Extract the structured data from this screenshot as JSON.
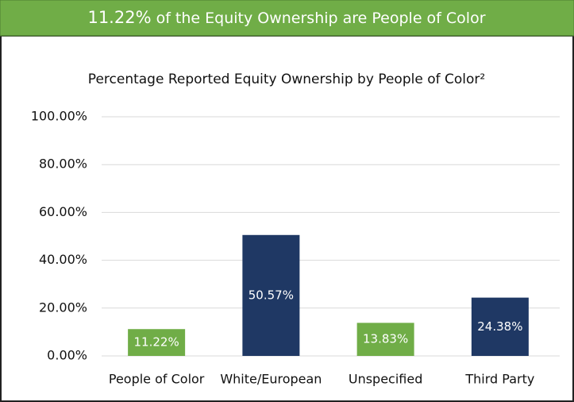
{
  "header": {
    "highlight": "11.22%",
    "text": "of the Equity Ownership are People of Color"
  },
  "chart_data": {
    "type": "bar",
    "title": "Percentage Reported Equity Ownership by People of Color²",
    "categories": [
      "People of Color",
      "White/European",
      "Unspecified",
      "Third Party"
    ],
    "values": [
      11.22,
      50.57,
      13.83,
      24.38
    ],
    "value_labels": [
      "11.22%",
      "50.57%",
      "13.83%",
      "24.38%"
    ],
    "colors": [
      "#70ad47",
      "#1f3864",
      "#70ad47",
      "#1f3864"
    ],
    "ylim": [
      0,
      100
    ],
    "yticks": [
      {
        "value": 0,
        "label": "0.00%"
      },
      {
        "value": 20,
        "label": "20.00%"
      },
      {
        "value": 40,
        "label": "40.00%"
      },
      {
        "value": 60,
        "label": "60.00%"
      },
      {
        "value": 80,
        "label": "80.00%"
      },
      {
        "value": 100,
        "label": "100.00%"
      }
    ],
    "grid": true
  }
}
